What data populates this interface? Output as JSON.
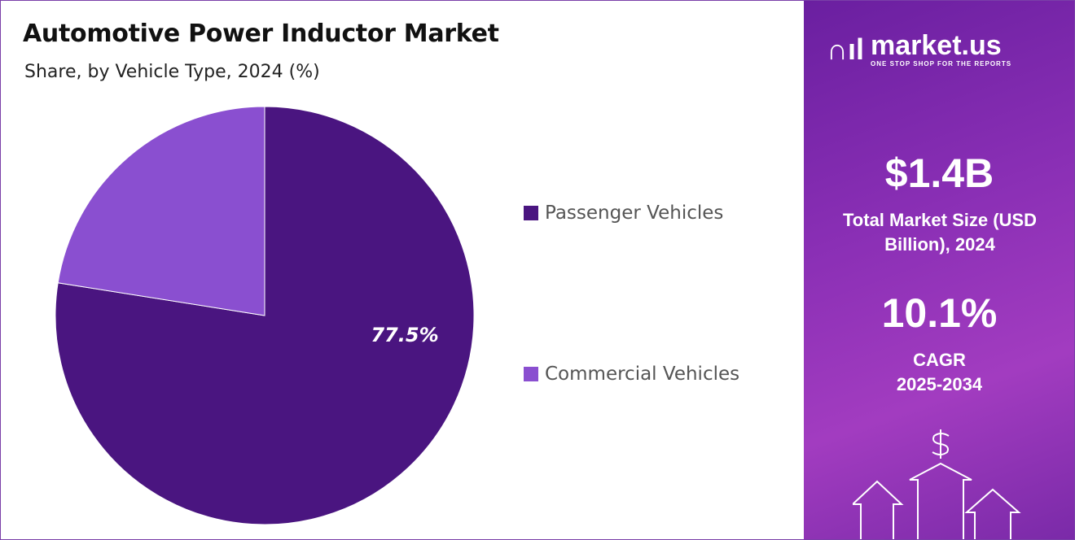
{
  "chart_data": {
    "type": "pie",
    "title": "Automotive Power Inductor Market",
    "subtitle": "Share, by Vehicle Type, 2024 (%)",
    "categories": [
      "Passenger Vehicles",
      "Commercial Vehicles"
    ],
    "values": [
      77.5,
      22.5
    ],
    "data_labels": [
      "77.5%",
      ""
    ],
    "colors": [
      "#4a1580",
      "#8a4fd0"
    ],
    "legend_placement": "right"
  },
  "sidebar": {
    "logo": {
      "name": "market.us",
      "tagline": "ONE STOP SHOP FOR THE REPORTS"
    },
    "market_size": "$1.4B",
    "market_size_label": "Total Market Size (USD Billion), 2024",
    "cagr": "10.1%",
    "cagr_label_1": "CAGR",
    "cagr_label_2": "2025-2034"
  }
}
